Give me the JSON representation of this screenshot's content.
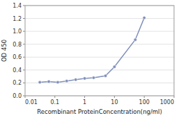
{
  "chart_data": {
    "type": "line",
    "x": [
      0.03125,
      0.0625,
      0.125,
      0.25,
      0.5,
      1,
      2,
      5,
      10,
      50,
      100
    ],
    "values": [
      0.21,
      0.22,
      0.21,
      0.23,
      0.25,
      0.27,
      0.28,
      0.31,
      0.45,
      0.87,
      1.21
    ],
    "color": "#8090bb",
    "marker": "circle",
    "xlabel": "Recombinant ProteinConcentration(ng/ml)",
    "ylabel": "OD 450",
    "log": "x",
    "xlim": [
      0.01,
      1000
    ],
    "ylim": [
      0,
      1.4
    ],
    "xticks": [
      0.01,
      0.1,
      1,
      10,
      100,
      1000
    ],
    "yticks": [
      {
        "value": 0,
        "label": "0.0"
      },
      0.2,
      0.4,
      0.6,
      0.8,
      {
        "value": 1.0,
        "label": "1.0"
      },
      1.2,
      1.4
    ],
    "grid": true
  }
}
